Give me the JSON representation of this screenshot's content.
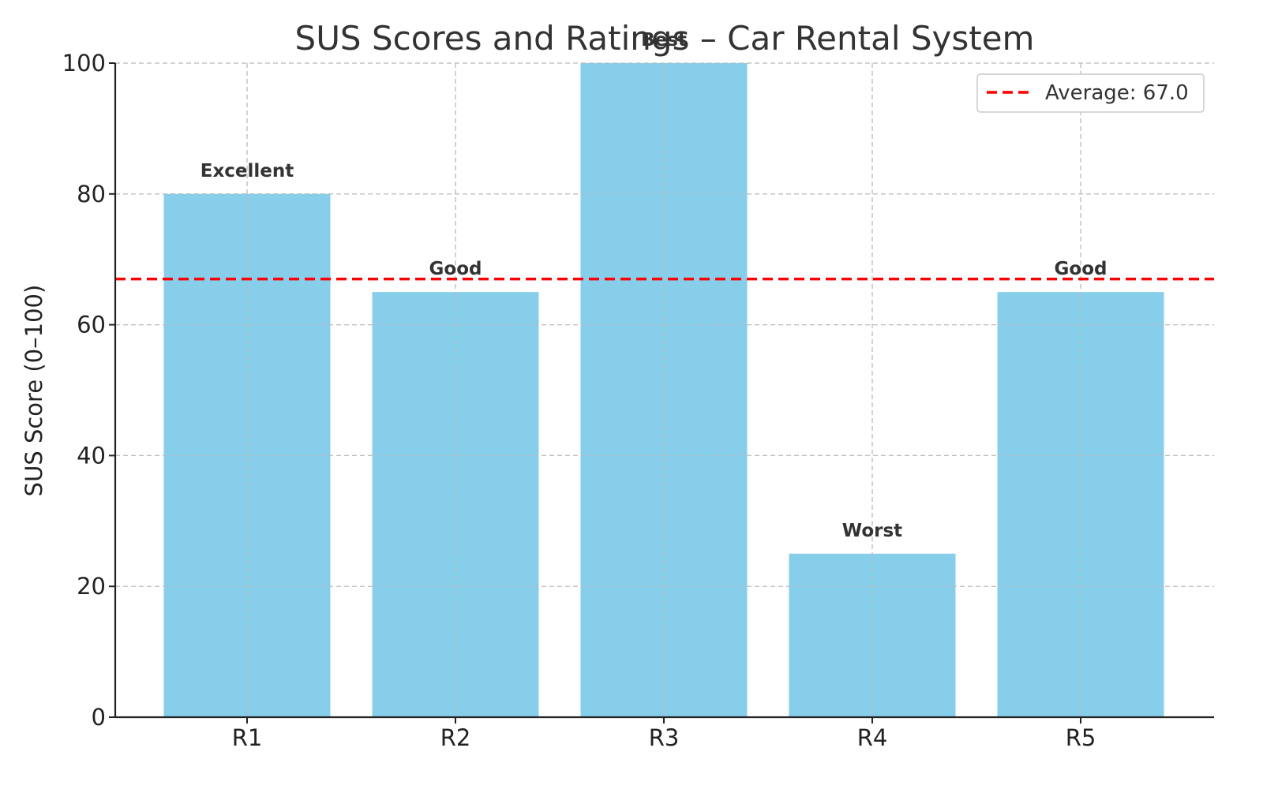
{
  "chart_data": {
    "type": "bar",
    "title": "SUS Scores and Ratings – Car Rental System",
    "xlabel": "",
    "ylabel": "SUS Score (0–100)",
    "categories": [
      "R1",
      "R2",
      "R3",
      "R4",
      "R5"
    ],
    "values": [
      80,
      65,
      100,
      25,
      65
    ],
    "annotations": [
      "Excellent",
      "Good",
      "Best",
      "Worst",
      "Good"
    ],
    "ylim": [
      0,
      100
    ],
    "yticks": [
      0,
      20,
      40,
      60,
      80,
      100
    ],
    "grid": true,
    "legend_position": "top-right",
    "reference_line": {
      "value": 67.0,
      "label": "Average: 67.0",
      "style": "dashed",
      "color": "#ff0000"
    },
    "colors": {
      "bar": "#87ceeb",
      "average_line": "#ff0000",
      "grid": "#cccccc",
      "axis": "#222222"
    }
  }
}
